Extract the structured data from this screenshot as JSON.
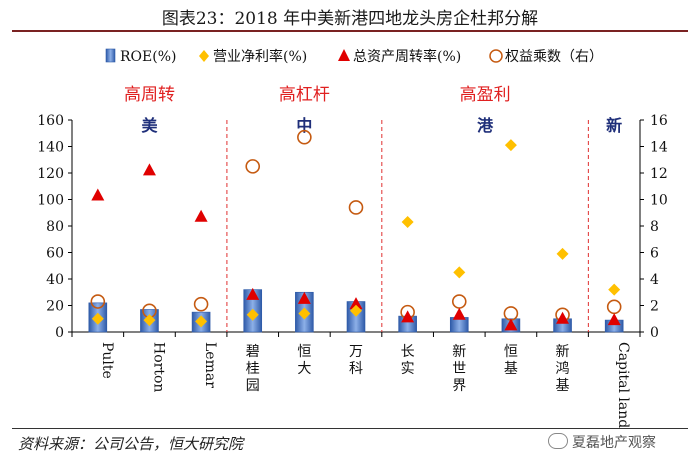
{
  "figure_title": "图表23：2018 年中美新港四地龙头房企杜邦分解",
  "source_note": "资料来源：公司公告，恒大研究院",
  "watermark": "夏磊地产观察",
  "colors": {
    "bar": "#4472C4",
    "margin": "#FFC000",
    "turnover": "#E00000",
    "leverage": "#C55A11",
    "region_title": "#E02020",
    "region_label": "#1F2F7A",
    "divider": "#E03030"
  },
  "chart_data": {
    "type": "bar",
    "categories": [
      "Pulte",
      "Horton",
      "Lemar",
      "碧桂园",
      "恒大",
      "万科",
      "长实",
      "新世界",
      "恒基",
      "新鸿基",
      "Capital land"
    ],
    "series": [
      {
        "name": "ROE(%)",
        "kind": "bar",
        "axis": "left",
        "values": [
          22,
          17,
          15,
          32,
          30,
          23,
          12,
          11,
          10,
          10,
          9
        ]
      },
      {
        "name": "营业净利率(%)",
        "kind": "diamond",
        "axis": "left",
        "values": [
          10,
          9,
          8,
          13,
          14,
          16,
          83,
          45,
          141,
          59,
          32
        ]
      },
      {
        "name": "总资产周转率(%)",
        "kind": "triangle",
        "axis": "left",
        "values": [
          103,
          122,
          87,
          28,
          25,
          21,
          11,
          13,
          5,
          10,
          9
        ]
      },
      {
        "name": "权益乘数（右）",
        "kind": "circle",
        "axis": "right",
        "values": [
          2.3,
          1.6,
          2.1,
          12.5,
          14.7,
          9.4,
          1.5,
          2.3,
          1.4,
          1.3,
          1.9
        ]
      }
    ],
    "ylim": [
      0,
      160
    ],
    "yticks": [
      0,
      20,
      40,
      60,
      80,
      100,
      120,
      140,
      160
    ],
    "y2lim": [
      0,
      16
    ],
    "y2ticks": [
      0,
      2,
      4,
      6,
      8,
      10,
      12,
      14,
      16
    ],
    "regions": [
      {
        "title": "高周转",
        "label": "美",
        "start": 0,
        "end": 3
      },
      {
        "title": "高杠杆",
        "label": "中",
        "start": 3,
        "end": 6
      },
      {
        "title": "高盈利",
        "label": "港",
        "start": 6,
        "end": 10
      },
      {
        "title": "",
        "label": "新",
        "start": 10,
        "end": 11
      }
    ],
    "legend_position": "top"
  }
}
